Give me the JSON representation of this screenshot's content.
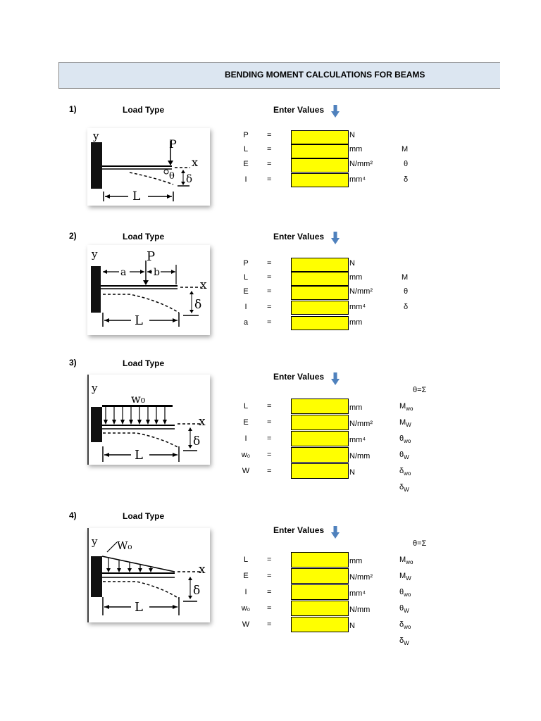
{
  "header": {
    "title": "BENDING MOMENT CALCULATIONS FOR BEAMS"
  },
  "colors": {
    "header_bg": "#dce6f1",
    "input_cell": "#ffff00",
    "arrow": "#4f81bd"
  },
  "sections": [
    {
      "number": "1)",
      "load_type": "Load Type",
      "enter_values": "Enter Values",
      "figure_labels": [
        "y",
        "P",
        "x",
        "θ",
        "δ",
        "L"
      ],
      "inputs": [
        {
          "var": "P",
          "eq": "=",
          "unit": "N"
        },
        {
          "var": "L",
          "eq": "=",
          "unit": "mm"
        },
        {
          "var": "E",
          "eq": "=",
          "unit": "N/mm²"
        },
        {
          "var": "I",
          "eq": "=",
          "unit": "mm⁴"
        }
      ],
      "results": [
        "M",
        "θ",
        "δ"
      ]
    },
    {
      "number": "2)",
      "load_type": "Load Type",
      "enter_values": "Enter Values",
      "figure_labels": [
        "y",
        "P",
        "a",
        "b",
        "x",
        "δ",
        "L"
      ],
      "inputs": [
        {
          "var": "P",
          "eq": "=",
          "unit": "N"
        },
        {
          "var": "L",
          "eq": "=",
          "unit": "mm"
        },
        {
          "var": "E",
          "eq": "=",
          "unit": "N/mm²"
        },
        {
          "var": "I",
          "eq": "=",
          "unit": "mm⁴"
        },
        {
          "var": "a",
          "eq": "=",
          "unit": "mm"
        }
      ],
      "results": [
        "M",
        "θ",
        "δ"
      ]
    },
    {
      "number": "3)",
      "load_type": "Load Type",
      "enter_values": "Enter Values",
      "figure_labels": [
        "y",
        "w₀",
        "x",
        "δ",
        "L"
      ],
      "top_result": "θ=Σ",
      "inputs": [
        {
          "var": "L",
          "eq": "=",
          "unit": "mm"
        },
        {
          "var": "E",
          "eq": "=",
          "unit": "N/mm²"
        },
        {
          "var": "I",
          "eq": "=",
          "unit": "mm⁴"
        },
        {
          "var": "w₀",
          "eq": "=",
          "unit": "N/mm"
        },
        {
          "var": "W",
          "eq": "=",
          "unit": "N"
        }
      ],
      "results": [
        "Mwo",
        "Mw",
        "θwo",
        "θw",
        "δwo",
        "δw"
      ]
    },
    {
      "number": "4)",
      "load_type": "Load Type",
      "enter_values": "Enter Values",
      "figure_labels": [
        "y",
        "W₀",
        "x",
        "δ",
        "L"
      ],
      "top_result": "θ=Σ",
      "inputs": [
        {
          "var": "L",
          "eq": "=",
          "unit": "mm"
        },
        {
          "var": "E",
          "eq": "=",
          "unit": "N/mm²"
        },
        {
          "var": "I",
          "eq": "=",
          "unit": "mm⁴"
        },
        {
          "var": "w₀",
          "eq": "=",
          "unit": "N/mm"
        },
        {
          "var": "W",
          "eq": "=",
          "unit": "N"
        }
      ],
      "results": [
        "Mwo",
        "Mw",
        "θwo",
        "θw",
        "δwo",
        "δw"
      ]
    }
  ]
}
